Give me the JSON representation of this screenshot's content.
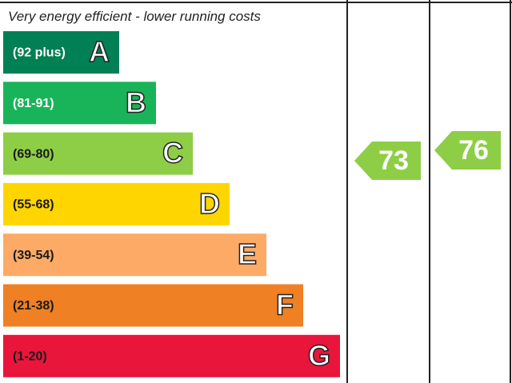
{
  "header": "Very energy efficient - lower running costs",
  "bands": [
    {
      "range": "(92 plus)",
      "letter": "A",
      "color": "#008054",
      "text_color": "#ffffff"
    },
    {
      "range": "(81-91)",
      "letter": "B",
      "color": "#19b459",
      "text_color": "#ffffff"
    },
    {
      "range": "(69-80)",
      "letter": "C",
      "color": "#8dce46",
      "text_color": "#1a1a1a"
    },
    {
      "range": "(55-68)",
      "letter": "D",
      "color": "#ffd500",
      "text_color": "#1a1a1a"
    },
    {
      "range": "(39-54)",
      "letter": "E",
      "color": "#fcaa65",
      "text_color": "#1a1a1a"
    },
    {
      "range": "(21-38)",
      "letter": "F",
      "color": "#ef8023",
      "text_color": "#1a1a1a"
    },
    {
      "range": "(1-20)",
      "letter": "G",
      "color": "#e9153b",
      "text_color": "#1a1a1a"
    }
  ],
  "current": {
    "value": 73,
    "color": "#8dce46"
  },
  "potential": {
    "value": 76,
    "color": "#8dce46"
  }
}
